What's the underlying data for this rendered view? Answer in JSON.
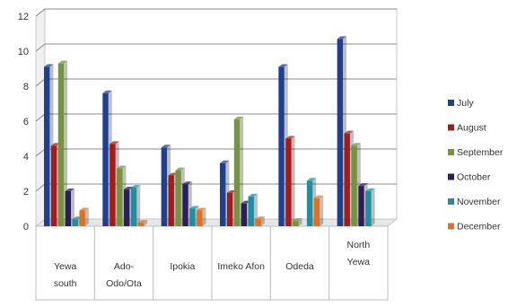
{
  "chart_data": {
    "type": "bar",
    "ylim": [
      0,
      12
    ],
    "yticks": [
      0,
      2,
      4,
      6,
      8,
      10,
      12
    ],
    "grid": true,
    "legend_position": "right",
    "categories": [
      [
        "Yewa",
        "south"
      ],
      [
        "Ado-",
        "Odo/Ota"
      ],
      [
        "Ipokia"
      ],
      [
        "Imeko Afon"
      ],
      [
        "Odeda"
      ],
      [
        "North",
        "Yewa"
      ]
    ],
    "series": [
      {
        "name": "July",
        "color": "#1f3f8f",
        "values": [
          9.1,
          7.6,
          4.5,
          3.6,
          9.1,
          10.7
        ]
      },
      {
        "name": "August",
        "color": "#a11d1d",
        "values": [
          4.6,
          4.7,
          2.9,
          1.9,
          5.0,
          5.3
        ]
      },
      {
        "name": "September",
        "color": "#77933c",
        "values": [
          9.3,
          3.3,
          3.2,
          6.1,
          0.3,
          4.6
        ]
      },
      {
        "name": "October",
        "color": "#2a1f5a",
        "values": [
          2.0,
          2.1,
          2.4,
          1.3,
          0.0,
          2.3
        ]
      },
      {
        "name": "November",
        "color": "#1d8fa3",
        "values": [
          0.4,
          2.2,
          1.0,
          1.7,
          2.6,
          2.0
        ]
      },
      {
        "name": "December",
        "color": "#e2711d",
        "values": [
          0.9,
          0.2,
          0.9,
          0.4,
          1.6,
          0.0
        ]
      }
    ]
  }
}
